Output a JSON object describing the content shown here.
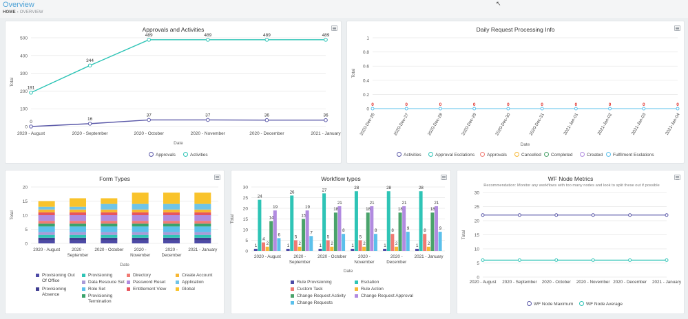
{
  "page": {
    "title": "Overview",
    "breadcrumb": {
      "home": "HOME",
      "separator": "›",
      "current": "OVERVIEW"
    }
  },
  "chart_data": [
    {
      "type": "line",
      "title": "Approvals and Activities",
      "xlabel": "Date",
      "ylabel": "Total",
      "ylim": [
        0,
        500
      ],
      "yticks": [
        0,
        100,
        200,
        300,
        400,
        500
      ],
      "categories": [
        "2020 - August",
        "2020 - September",
        "2020 - October",
        "2020 - November",
        "2020 - December",
        "2021 - January"
      ],
      "series": [
        {
          "name": "Approvals",
          "color": "#5a58a8",
          "values": [
            0,
            16,
            37,
            37,
            36,
            36
          ]
        },
        {
          "name": "Activities",
          "color": "#2ec4b6",
          "values": [
            191,
            344,
            489,
            489,
            489,
            489
          ]
        }
      ],
      "legend": "bottom"
    },
    {
      "type": "line",
      "title": "Daily Request Processing Info",
      "xlabel": "Date",
      "ylabel": "Total",
      "ylim": [
        0,
        1
      ],
      "yticks": [
        0,
        0.2,
        0.4,
        0.6,
        0.8,
        1
      ],
      "ytick_labels": [
        "0",
        "0.2",
        "0.4",
        "0.6",
        "0.8",
        "1"
      ],
      "categories": [
        "2020-Dec-26",
        "2020-Dec-27",
        "2020-Dec-28",
        "2020-Dec-29",
        "2020-Dec-30",
        "2020-Dec-31",
        "2021-Jan-01",
        "2021-Jan-02",
        "2021-Jan-03",
        "2021-Jan-04"
      ],
      "point_labels": [
        "0",
        "0",
        "0",
        "0",
        "0",
        "0",
        "0",
        "0",
        "0",
        "0"
      ],
      "series": [
        {
          "name": "Activities",
          "color": "#5a58a8",
          "values": [
            0,
            0,
            0,
            0,
            0,
            0,
            0,
            0,
            0,
            0
          ]
        },
        {
          "name": "Approval Esclations",
          "color": "#2ec4b6",
          "values": [
            0,
            0,
            0,
            0,
            0,
            0,
            0,
            0,
            0,
            0
          ]
        },
        {
          "name": "Approvals",
          "color": "#f07a73",
          "values": [
            0,
            0,
            0,
            0,
            0,
            0,
            0,
            0,
            0,
            0
          ]
        },
        {
          "name": "Cancelled",
          "color": "#f7b733",
          "values": [
            0,
            0,
            0,
            0,
            0,
            0,
            0,
            0,
            0,
            0
          ]
        },
        {
          "name": "Completed",
          "color": "#4aa36b",
          "values": [
            0,
            0,
            0,
            0,
            0,
            0,
            0,
            0,
            0,
            0
          ]
        },
        {
          "name": "Created",
          "color": "#b18be0",
          "values": [
            0,
            0,
            0,
            0,
            0,
            0,
            0,
            0,
            0,
            0
          ]
        },
        {
          "name": "Fulfilment Esclations",
          "color": "#5bc0eb",
          "values": [
            0,
            0,
            0,
            0,
            0,
            0,
            0,
            0,
            0,
            0
          ]
        }
      ],
      "legend": "bottom"
    },
    {
      "type": "bar",
      "stacked": true,
      "title": "Form Types",
      "xlabel": "Date",
      "ylabel": "Total",
      "ylim": [
        0,
        20
      ],
      "yticks": [
        0,
        5,
        10,
        15,
        20
      ],
      "categories": [
        "2020 - August",
        "2020 - September",
        "2020 - October",
        "2020 - November",
        "2020 - December",
        "2021 - January"
      ],
      "category_lines": [
        [
          "2020 - August"
        ],
        [
          "2020 -",
          "September"
        ],
        [
          "2020 - October"
        ],
        [
          "2020 -",
          "November"
        ],
        [
          "2020 -",
          "December"
        ],
        [
          "2021 - January"
        ]
      ],
      "series": [
        {
          "name": "Provisioning Out Of Office",
          "color": "#4d4aa6",
          "values": [
            1,
            1,
            1,
            1,
            1,
            1
          ]
        },
        {
          "name": "Provisioning Absence",
          "color": "#3f3d91",
          "values": [
            1,
            1,
            1,
            1,
            1,
            1
          ]
        },
        {
          "name": "Provisioning",
          "color": "#2ec4b6",
          "values": [
            1,
            1,
            1,
            1,
            1,
            1
          ]
        },
        {
          "name": "Data Resouce Set",
          "color": "#a99ad8",
          "values": [
            1,
            1,
            1,
            1,
            1,
            1
          ]
        },
        {
          "name": "Role Set",
          "color": "#5bc0eb",
          "values": [
            2,
            2,
            2,
            2,
            2,
            2
          ]
        },
        {
          "name": "Provisioning Termination",
          "color": "#3aa36b",
          "values": [
            1,
            1,
            1,
            1,
            1,
            1
          ]
        },
        {
          "name": "Directory",
          "color": "#f07a73",
          "values": [
            1,
            1,
            1,
            1,
            1,
            1
          ]
        },
        {
          "name": "Password Reset",
          "color": "#b18be0",
          "values": [
            2,
            2,
            2,
            2,
            2,
            2
          ]
        },
        {
          "name": "Entitlement View",
          "color": "#e8555d",
          "values": [
            1,
            1,
            1,
            1,
            1,
            1
          ]
        },
        {
          "name": "Create Account",
          "color": "#f7b733",
          "values": [
            1,
            1,
            1,
            1,
            1,
            1
          ]
        },
        {
          "name": "Application",
          "color": "#6fc4e8",
          "values": [
            1,
            1,
            2,
            2,
            2,
            2
          ]
        },
        {
          "name": "Global",
          "color": "#f9c32b",
          "values": [
            2,
            3,
            2,
            4,
            4,
            4
          ]
        }
      ],
      "legend": "bottom"
    },
    {
      "type": "bar",
      "title": "Workflow types",
      "xlabel": "Date",
      "ylabel": "Total",
      "ylim": [
        0,
        30
      ],
      "yticks": [
        0,
        5,
        10,
        15,
        20,
        25,
        30
      ],
      "categories": [
        "2020 - August",
        "2020 - September",
        "2020 - October",
        "2020 - November",
        "2020 - December",
        "2021 - January"
      ],
      "category_lines": [
        [
          "2020 - August"
        ],
        [
          "2020 -",
          "September"
        ],
        [
          "2020 - October"
        ],
        [
          "2020 -",
          "November"
        ],
        [
          "2020 -",
          "December"
        ],
        [
          "2021 - January"
        ]
      ],
      "series": [
        {
          "name": "Rule Provisioning",
          "color": "#4d4aa6",
          "values": [
            1,
            1,
            1,
            1,
            1,
            1
          ]
        },
        {
          "name": "Esclation",
          "color": "#2ec4b6",
          "values": [
            24,
            26,
            27,
            28,
            28,
            28
          ]
        },
        {
          "name": "Custom Task",
          "color": "#f07a73",
          "values": [
            4,
            5,
            5,
            5,
            8,
            8
          ]
        },
        {
          "name": "Rule Action",
          "color": "#f7b733",
          "values": [
            2,
            2,
            2,
            2,
            2,
            2
          ]
        },
        {
          "name": "Change Request Activity",
          "color": "#4aa36b",
          "values": [
            14,
            15,
            18,
            18,
            18,
            18
          ]
        },
        {
          "name": "Change Request Approval",
          "color": "#b18be0",
          "values": [
            19,
            19,
            21,
            21,
            21,
            21
          ]
        },
        {
          "name": "Change Requests",
          "color": "#5bc0eb",
          "values": [
            6,
            7,
            8,
            8,
            9,
            9
          ]
        }
      ],
      "legend": "bottom"
    },
    {
      "type": "line",
      "title": "WF Node Metrics",
      "subtitle": "Recommendation: Monitor any workflows with too many nodes and look to split these out if possible",
      "xlabel": "",
      "ylabel": "Total",
      "ylim": [
        0,
        30
      ],
      "yticks": [
        0,
        5,
        10,
        15,
        20,
        25,
        30
      ],
      "categories": [
        "2020 - August",
        "2020 - September",
        "2020 - October",
        "2020 - November",
        "2020 - December",
        "2021 - January"
      ],
      "series": [
        {
          "name": "WF Node Maximum",
          "color": "#5a58a8",
          "values": [
            22,
            22,
            22,
            22,
            22,
            22
          ]
        },
        {
          "name": "WF Node Average",
          "color": "#2ec4b6",
          "values": [
            6,
            6,
            6,
            6,
            6,
            6
          ]
        }
      ],
      "legend": "bottom"
    }
  ]
}
